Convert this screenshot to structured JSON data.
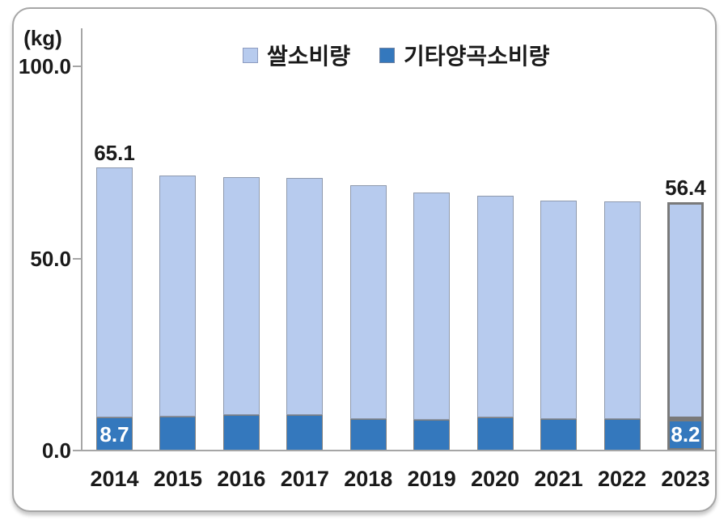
{
  "chart": {
    "unit_label": "(kg)",
    "legend": [
      {
        "label": "쌀소비량",
        "swatch": "rice-swatch-icon"
      },
      {
        "label": "기타양곡소비량",
        "swatch": "other-grain-swatch-icon"
      }
    ],
    "colors": {
      "rice_fill": "#b7cbee",
      "rice_border": "#8e99ad",
      "other_fill": "#3478bd",
      "other_border": "#7f7f7f",
      "highlight_border": "#7a7a7a",
      "axis": "#a6a6a6",
      "text_dark": "#1a1a1a",
      "text_light": "#ffffff",
      "legend_rice_swatch_border": "#8d9cc0",
      "legend_other_swatch_border": "#6f81a0"
    }
  },
  "chart_data": {
    "type": "bar",
    "stacked": true,
    "title": "",
    "xlabel": "",
    "ylabel": "(kg)",
    "ylim": [
      0,
      110
    ],
    "grid": false,
    "legend_position": "top-center",
    "categories": [
      "2014",
      "2015",
      "2016",
      "2017",
      "2018",
      "2019",
      "2020",
      "2021",
      "2022",
      "2023"
    ],
    "series": [
      {
        "name": "기타양곡소비량",
        "values": [
          8.7,
          8.8,
          9.3,
          9.3,
          8.2,
          8.1,
          8.7,
          8.2,
          8.2,
          8.2
        ]
      },
      {
        "name": "쌀소비량",
        "values": [
          65.1,
          62.9,
          61.9,
          61.8,
          61.0,
          59.2,
          57.7,
          56.9,
          56.7,
          56.4
        ]
      }
    ],
    "yticks": [
      {
        "value": 0,
        "label": "0.0"
      },
      {
        "value": 50,
        "label": "50.0"
      },
      {
        "value": 100,
        "label": "100.0"
      }
    ],
    "value_labels": [
      {
        "index": 0,
        "rice": "65.1",
        "other": "8.7"
      },
      {
        "index": 9,
        "rice": "56.4",
        "other": "8.2"
      }
    ],
    "highlight_category_index": 9
  }
}
